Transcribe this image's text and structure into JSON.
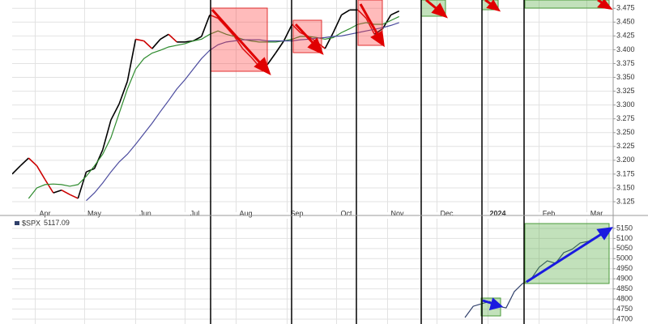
{
  "chart_data": [
    {
      "type": "line",
      "xlim": [
        0,
        365
      ],
      "ylim": [
        3.106,
        3.49
      ],
      "xticks": [
        {
          "value": 14,
          "label": "Apr"
        },
        {
          "value": 44,
          "label": "May"
        },
        {
          "value": 75,
          "label": "Jun"
        },
        {
          "value": 105,
          "label": "Jul"
        },
        {
          "value": 136,
          "label": "Aug"
        },
        {
          "value": 167,
          "label": "Sep"
        },
        {
          "value": 197,
          "label": "Oct"
        },
        {
          "value": 228,
          "label": "Nov"
        },
        {
          "value": 258,
          "label": "Dec"
        },
        {
          "value": 289,
          "label": "2024"
        },
        {
          "value": 320,
          "label": "Feb"
        },
        {
          "value": 349,
          "label": "Mar"
        }
      ],
      "yticks": [
        3.125,
        {
          "value": 3.15,
          "label": "3.150"
        },
        3.175,
        {
          "value": 3.2,
          "label": "3.200"
        },
        3.225,
        {
          "value": 3.25,
          "label": "3.250"
        },
        3.275,
        {
          "value": 3.3,
          "label": "3.300"
        },
        3.325,
        {
          "value": 3.35,
          "label": "3.350"
        },
        3.375,
        {
          "value": 3.4,
          "label": "3.400"
        },
        3.425,
        {
          "value": 3.45,
          "label": "3.450"
        },
        3.475
      ],
      "grid": true,
      "x": [
        0,
        5,
        10,
        15,
        20,
        25,
        30,
        35,
        40,
        45,
        50,
        55,
        60,
        65,
        70,
        75,
        80,
        85,
        90,
        95,
        100,
        105,
        110,
        115,
        120,
        125,
        130,
        135,
        140,
        145,
        150,
        155,
        160,
        165,
        170,
        175,
        180,
        185,
        190,
        195,
        200,
        205,
        210,
        215,
        220,
        225,
        230,
        235
      ],
      "series": [
        {
          "up_color": "#000000",
          "down_color": "#cc0000",
          "values": [
            3.175,
            3.19,
            3.204,
            3.19,
            3.165,
            3.141,
            3.146,
            3.138,
            3.131,
            3.179,
            3.185,
            3.219,
            3.273,
            3.302,
            3.343,
            3.419,
            3.416,
            3.402,
            3.419,
            3.428,
            3.414,
            3.414,
            3.416,
            3.424,
            3.463,
            3.457,
            3.441,
            3.424,
            3.402,
            3.387,
            3.37,
            3.373,
            3.394,
            3.416,
            3.446,
            3.431,
            3.424,
            3.414,
            3.402,
            3.431,
            3.463,
            3.472,
            3.472,
            3.457,
            3.428,
            3.438,
            3.463,
            3.47
          ]
        },
        {
          "color": "#2e8b2e",
          "values": [
            null,
            null,
            3.131,
            3.15,
            3.156,
            3.157,
            3.156,
            3.153,
            3.156,
            3.171,
            3.19,
            3.211,
            3.241,
            3.285,
            3.329,
            3.365,
            3.384,
            3.394,
            3.399,
            3.405,
            3.408,
            3.411,
            3.416,
            3.419,
            3.428,
            3.434,
            3.428,
            3.424,
            3.419,
            3.416,
            3.414,
            3.414,
            3.414,
            3.416,
            3.419,
            3.424,
            3.424,
            3.422,
            3.419,
            3.422,
            3.431,
            3.438,
            3.446,
            3.449,
            3.446,
            3.446,
            3.453,
            3.46
          ]
        },
        {
          "color": "#4b4b9e",
          "values": [
            null,
            null,
            null,
            null,
            null,
            null,
            null,
            null,
            null,
            3.127,
            3.141,
            3.159,
            3.179,
            3.197,
            3.211,
            3.229,
            3.248,
            3.267,
            3.288,
            3.308,
            3.329,
            3.346,
            3.365,
            3.384,
            3.399,
            3.409,
            3.414,
            3.416,
            3.418,
            3.418,
            3.418,
            3.416,
            3.416,
            3.416,
            3.416,
            3.418,
            3.419,
            3.421,
            3.422,
            3.424,
            3.425,
            3.428,
            3.431,
            3.434,
            3.437,
            3.44,
            3.444,
            3.449
          ]
        }
      ]
    },
    {
      "type": "line",
      "xlim": [
        0,
        365
      ],
      "ylim": [
        4676,
        5198
      ],
      "yticks": [
        4700,
        4750,
        4800,
        4850,
        4900,
        4950,
        5000,
        5050,
        5100,
        5150
      ],
      "grid": true,
      "x": [
        275,
        280,
        285,
        290,
        295,
        300,
        305,
        310,
        315,
        320,
        325,
        330,
        335,
        340,
        345,
        350,
        355,
        360
      ],
      "series": [
        {
          "name": "$SPX",
          "last_value": 5117.09,
          "color": "#2f3f6a",
          "values": [
            4708,
            4764,
            4776,
            4788,
            4764,
            4756,
            4837,
            4877,
            4897,
            4957,
            4989,
            4977,
            5030,
            5046,
            5078,
            5086,
            5110,
            5126
          ]
        }
      ]
    }
  ]
}
